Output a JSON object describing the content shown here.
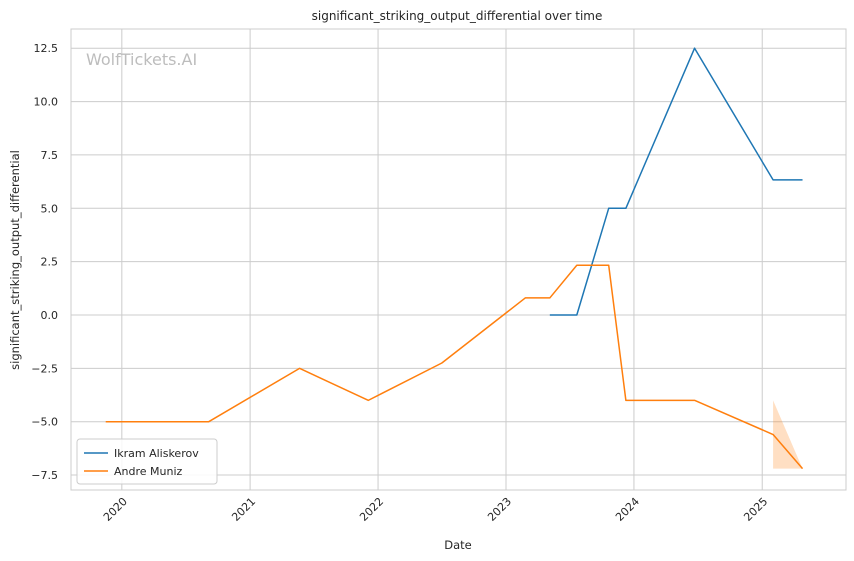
{
  "chart_data": {
    "type": "line",
    "title": "significant_striking_output_differential over time",
    "xlabel": "Date",
    "ylabel": "significant_striking_output_differential",
    "watermark": "WolfTickets.AI",
    "x_ticks": [
      "2020",
      "2021",
      "2022",
      "2023",
      "2024",
      "2025"
    ],
    "y_ticks": [
      "12.5",
      "10.0",
      "7.5",
      "5.0",
      "2.5",
      "0.0",
      "−2.5",
      "−5.0",
      "−7.5"
    ],
    "y_tick_values": [
      12.5,
      10.0,
      7.5,
      5.0,
      2.5,
      0.0,
      -2.5,
      -5.0,
      -7.5
    ],
    "xlim": [
      "2019-08-09",
      "2025-08-28"
    ],
    "ylim": [
      -8.2,
      13.4
    ],
    "grid": true,
    "legend_position": "lower-left",
    "series": [
      {
        "name": "Ikram Aliskerov",
        "color": "#1f77b4",
        "x": [
          "2023-05-06",
          "2023-07-22",
          "2023-10-21",
          "2023-12-09",
          "2024-06-22",
          "2025-02-01",
          "2025-04-26"
        ],
        "y": [
          0.0,
          0.0,
          5.0,
          5.0,
          12.5,
          6.33,
          6.33
        ]
      },
      {
        "name": "Andre Muniz",
        "color": "#ff7f0e",
        "x": [
          "2019-11-16",
          "2020-09-05",
          "2021-05-22",
          "2021-12-04",
          "2022-07-02",
          "2023-02-25",
          "2023-05-06",
          "2023-07-22",
          "2023-10-21",
          "2023-12-09",
          "2024-06-22",
          "2025-02-01",
          "2025-04-26"
        ],
        "y": [
          -5.0,
          -5.0,
          -2.5,
          -4.0,
          -2.25,
          0.8,
          0.8,
          2.33,
          2.33,
          -4.0,
          -4.0,
          -5.6,
          -7.2
        ]
      }
    ],
    "bands": [
      {
        "series": "Andre Muniz",
        "color": "#ff7f0e",
        "x": [
          "2025-02-01",
          "2025-04-26"
        ],
        "upper": [
          -4.0,
          -7.2
        ],
        "lower": [
          -7.2,
          -7.2
        ]
      }
    ]
  }
}
